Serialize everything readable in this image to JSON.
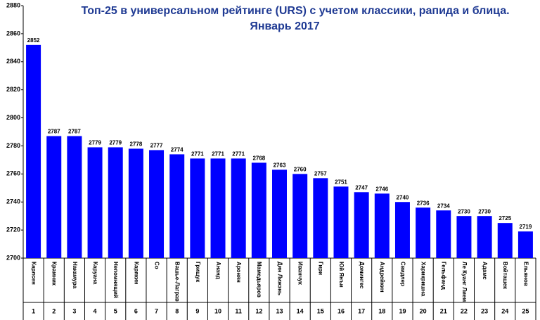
{
  "chart_data": {
    "type": "bar",
    "title": "Топ-25 в универсальном рейтинге (URS) с учетом классики, рапида и блица.",
    "subtitle": "Январь 2017",
    "categories": [
      "Карлсен",
      "Крамник",
      "Накамура",
      "Каруана",
      "Непомнящий",
      "Карякин",
      "Со",
      "Вашье-Лаграв",
      "Грищук",
      "Ананд",
      "Аронян",
      "Мамедьяров",
      "Дин Лижэнь",
      "Иванчук",
      "Гири",
      "Юй Янъи",
      "Домингес",
      "Андрейкин",
      "Свидлер",
      "Харикришна",
      "Гельфанд",
      "Ле Куанг Лием",
      "Адамс",
      "Войташек",
      "Ельянов"
    ],
    "ranks": [
      "1",
      "2",
      "3",
      "4",
      "5",
      "6",
      "7",
      "8",
      "9",
      "10",
      "11",
      "12",
      "13",
      "14",
      "15",
      "16",
      "17",
      "18",
      "19",
      "20",
      "21",
      "22",
      "23",
      "24",
      "25"
    ],
    "values": [
      2852,
      2787,
      2787,
      2779,
      2779,
      2778,
      2777,
      2774,
      2771,
      2771,
      2771,
      2768,
      2763,
      2760,
      2757,
      2751,
      2747,
      2746,
      2740,
      2736,
      2734,
      2730,
      2730,
      2725,
      2719
    ],
    "color": "#0000ff",
    "ylim": [
      2700,
      2880
    ],
    "yticks": [
      2700,
      2720,
      2740,
      2760,
      2780,
      2800,
      2820,
      2840,
      2860,
      2880
    ]
  }
}
